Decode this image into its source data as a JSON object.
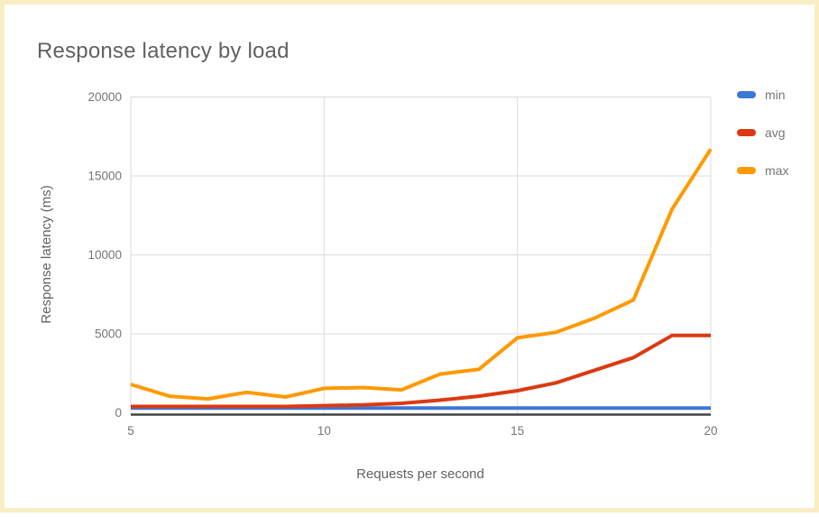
{
  "frame": {
    "border_color": "#f9eec3",
    "background": "#ffffff"
  },
  "chart": {
    "title_color": "#616161",
    "label_color": "#757575",
    "grid_color": "#dbdbdb",
    "baseline_color": "#424242"
  },
  "chart_data": {
    "type": "line",
    "title": "Response latency by load",
    "xlabel": "Requests per second",
    "ylabel": "Response latency (ms)",
    "x": [
      5,
      6,
      7,
      8,
      9,
      10,
      11,
      12,
      13,
      14,
      15,
      16,
      17,
      18,
      19,
      20
    ],
    "series": [
      {
        "name": "min",
        "color": "#3d78d8",
        "values": [
          300,
          300,
          300,
          300,
          300,
          300,
          300,
          300,
          300,
          300,
          300,
          300,
          300,
          300,
          300,
          300
        ]
      },
      {
        "name": "avg",
        "color": "#dc3912",
        "values": [
          400,
          400,
          400,
          400,
          400,
          450,
          500,
          600,
          800,
          1050,
          1400,
          1900,
          2700,
          3500,
          4900,
          4900
        ]
      },
      {
        "name": "max",
        "color": "#ff9900",
        "values": [
          1800,
          1050,
          880,
          1300,
          1000,
          1550,
          1600,
          1450,
          2450,
          2750,
          4750,
          5100,
          6000,
          7150,
          12900,
          16700
        ]
      }
    ],
    "xlim": [
      5,
      20
    ],
    "ylim": [
      0,
      20000
    ],
    "xticks": [
      5,
      10,
      15,
      20
    ],
    "yticks": [
      0,
      5000,
      10000,
      15000,
      20000
    ],
    "legend_position": "right",
    "grid": true
  }
}
